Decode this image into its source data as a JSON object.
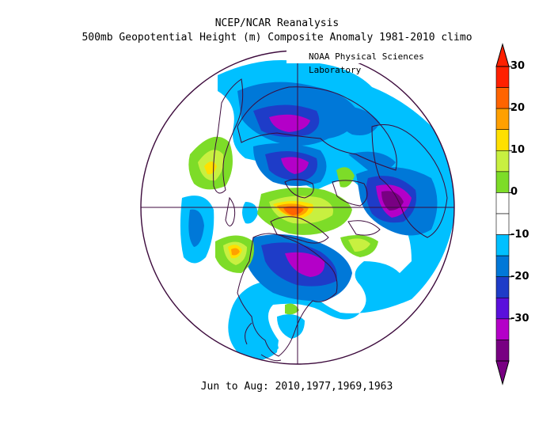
{
  "header": {
    "title": "NCEP/NCAR Reanalysis",
    "subtitle": "500mb Geopotential Height (m) Composite Anomaly 1981-2010 climo",
    "credit": "NOAA Physical Sciences Laboratory"
  },
  "footer": {
    "period": "Jun to Aug: 2010,1977,1969,1963"
  },
  "legend": {
    "labels": [
      "30",
      "20",
      "10",
      "0",
      "-10",
      "-20",
      "-30"
    ],
    "colors": [
      "#ff2000",
      "#ff6400",
      "#ffa000",
      "#ffe000",
      "#c8f040",
      "#7ddc28",
      "#ffffff",
      "#ffffff",
      "#00c0ff",
      "#0078d8",
      "#1e3cc8",
      "#5a10dc",
      "#b400c8",
      "#780082"
    ]
  }
}
